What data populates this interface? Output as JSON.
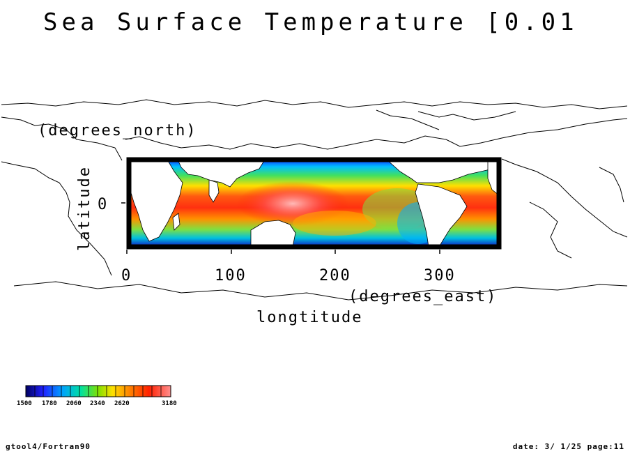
{
  "title": "Sea Surface Temperature [0.01",
  "axes": {
    "y_unit": "(degrees_north)",
    "y_label": "latitude",
    "y_tick": "0",
    "x_unit": "(degrees_east)",
    "x_label": "longtitude",
    "x_ticks": [
      "0",
      "100",
      "200",
      "300"
    ]
  },
  "colorbar": {
    "labels": [
      "1500",
      "1780",
      "2060",
      "2340",
      "2620",
      "3180"
    ],
    "colors": [
      "#000060",
      "#2020ff",
      "#00a0ff",
      "#00e0a0",
      "#80e000",
      "#ffe000",
      "#ff8000",
      "#ff2000",
      "#ff8080"
    ]
  },
  "footer": {
    "left": "gtool4/Fortran90",
    "right": "date: 3/ 1/25 page:11"
  },
  "chart_data": {
    "type": "heatmap",
    "title": "Sea Surface Temperature [0.01",
    "xlabel": "longtitude (degrees_east)",
    "ylabel": "latitude (degrees_north)",
    "xlim": [
      0,
      360
    ],
    "ylim": [
      -90,
      90
    ],
    "x_ticks": [
      0,
      100,
      200,
      300
    ],
    "y_ticks": [
      0
    ],
    "colorbar_ticks": [
      1500,
      1780,
      2060,
      2340,
      2620,
      3180
    ]
  }
}
